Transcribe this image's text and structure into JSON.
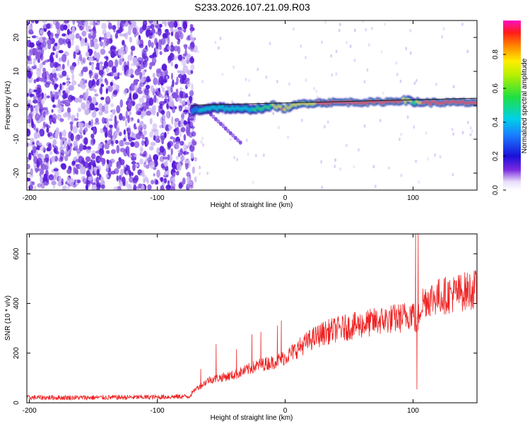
{
  "title": "S233.2026.107.21.09.R03",
  "colors": {
    "snr_line": "#ee2222",
    "ridge_colors": [
      "#2a0aa8",
      "#1a55ff",
      "#00c8e0",
      "#30e060",
      "#f0e000",
      "#ff2a2a"
    ],
    "noise_colors": [
      "#5a1cd8",
      "#8a55e0",
      "#c9b4f2"
    ]
  },
  "chart_data": [
    {
      "type": "heatmap",
      "xlabel": "Height of straight line (km)",
      "ylabel": "Frequency (Hz)",
      "xlim": [
        -202,
        150
      ],
      "ylim": [
        -25,
        25
      ],
      "xticks": [
        -200,
        -100,
        0,
        100
      ],
      "xtick_labels": [
        "-200",
        "-100",
        "0",
        "100"
      ],
      "yticks": [
        -20,
        -10,
        0,
        10,
        20
      ],
      "ytick_labels": [
        "-20",
        "-10",
        "0",
        "10",
        "20"
      ],
      "colorbar": {
        "label": "Normalized spectral amplitude",
        "range": [
          0,
          1
        ],
        "ticks": [
          0,
          0.2,
          0.4,
          0.6,
          0.8
        ],
        "tick_labels": [
          "0.0",
          "0.2",
          "0.4",
          "0.6",
          "0.8"
        ]
      },
      "noise_region_x": [
        -202,
        -70
      ],
      "ridge": {
        "x": [
          -72,
          -65,
          -55,
          -45,
          -35,
          -25,
          -15,
          -8,
          -2,
          5,
          15,
          30,
          50,
          70,
          85,
          92,
          98,
          101,
          104,
          110,
          130,
          150
        ],
        "frequency": [
          -1.5,
          -1.2,
          -0.6,
          -0.9,
          -1.2,
          -1.0,
          -0.8,
          0.0,
          -1.0,
          -0.4,
          0.6,
          0.8,
          0.9,
          0.9,
          1.2,
          1.5,
          1.3,
          0.8,
          1.0,
          0.8,
          0.8,
          0.8
        ],
        "amplitude": [
          0.3,
          0.35,
          0.35,
          0.4,
          0.45,
          0.5,
          0.6,
          0.7,
          0.85,
          0.75,
          0.8,
          0.85,
          0.92,
          0.95,
          0.9,
          0.85,
          0.7,
          0.6,
          0.7,
          0.9,
          0.92,
          0.9
        ]
      },
      "diagonal_streak": {
        "x": [
          -60,
          -35
        ],
        "frequency": [
          -2,
          -11
        ]
      }
    },
    {
      "type": "line",
      "xlabel": "Height of straight line (km)",
      "ylabel": "SNR (10 * v/v)",
      "xlim": [
        -202,
        150
      ],
      "ylim": [
        0,
        680
      ],
      "xticks": [
        -200,
        -100,
        0,
        100
      ],
      "xtick_labels": [
        "-200",
        "-100",
        "0",
        "100"
      ],
      "yticks": [
        0,
        200,
        400,
        600
      ],
      "ytick_labels": [
        "0",
        "200",
        "400",
        "600"
      ],
      "series": [
        {
          "x": [
            -202,
            -150,
            -100,
            -75,
            -70,
            -65,
            -60,
            -50,
            -40,
            -30,
            -20,
            -10,
            0,
            10,
            20,
            30,
            40,
            50,
            60,
            70,
            80,
            90,
            95,
            100,
            103,
            106,
            110,
            120,
            130,
            140,
            150
          ],
          "y": [
            20,
            20,
            22,
            25,
            55,
            70,
            90,
            100,
            110,
            130,
            150,
            160,
            180,
            215,
            250,
            275,
            290,
            300,
            310,
            320,
            330,
            335,
            345,
            360,
            300,
            390,
            410,
            420,
            430,
            440,
            450
          ],
          "spikes": [
            {
              "x": -66,
              "y": 135
            },
            {
              "x": -54,
              "y": 235
            },
            {
              "x": -38,
              "y": 215
            },
            {
              "x": -26,
              "y": 275
            },
            {
              "x": -19,
              "y": 285
            },
            {
              "x": -6,
              "y": 310
            },
            {
              "x": -3,
              "y": 330
            },
            {
              "x": 102,
              "y": 680
            },
            {
              "x": 103,
              "y": 55
            },
            {
              "x": 104,
              "y": 680
            }
          ]
        }
      ]
    }
  ]
}
